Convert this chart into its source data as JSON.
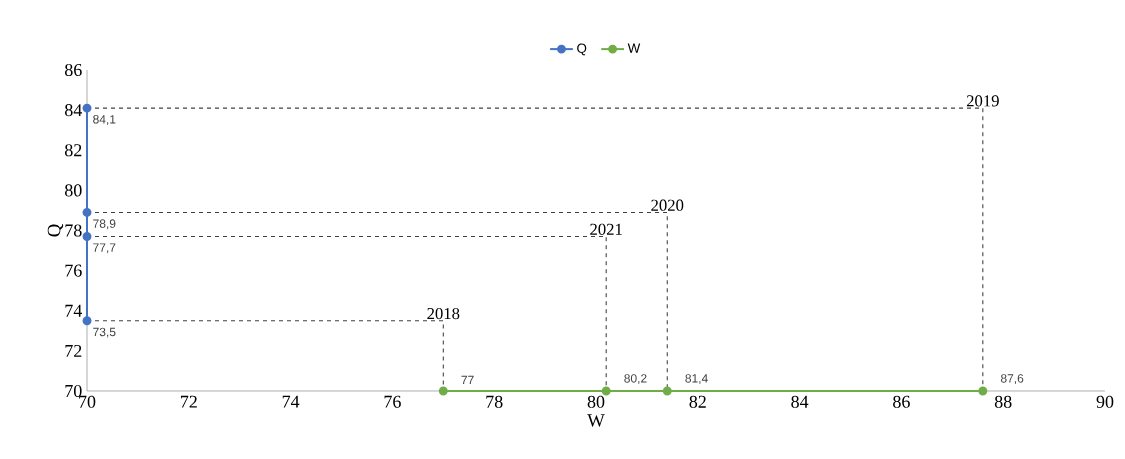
{
  "chart_data": {
    "type": "line",
    "xlabel": "W",
    "ylabel": "Q",
    "xlim": [
      70,
      90
    ],
    "ylim": [
      70,
      86
    ],
    "xticks": [
      70,
      72,
      74,
      76,
      78,
      80,
      82,
      84,
      86,
      88,
      90
    ],
    "yticks": [
      70,
      72,
      74,
      76,
      78,
      80,
      82,
      84,
      86
    ],
    "legend": "top",
    "marker": "circle",
    "grid": false,
    "series": [
      {
        "name": "Q",
        "color": "#4472c4",
        "x": [
          70,
          70,
          70,
          70
        ],
        "values": [
          73.5,
          77.7,
          78.9,
          84.1
        ],
        "value_labels": [
          "73,5",
          "77,7",
          "78,9",
          "84,1"
        ]
      },
      {
        "name": "W",
        "color": "#70ad47",
        "x": [
          77,
          80.2,
          81.4,
          87.6
        ],
        "values": [
          70,
          70,
          70,
          70
        ]
      },
      {
        "type": "line",
        "color": "#404040",
        "line_style": "dashed",
        "marker": "none",
        "x": [
          70,
          77,
          77
        ],
        "values": [
          73.5,
          73.5,
          70
        ]
      },
      {
        "type": "line",
        "color": "#404040",
        "line_style": "dashed",
        "marker": "none",
        "x": [
          70,
          80.2,
          80.2
        ],
        "values": [
          77.7,
          77.7,
          70
        ]
      },
      {
        "type": "line",
        "color": "#404040",
        "line_style": "dashed",
        "marker": "none",
        "x": [
          70,
          81.4,
          81.4
        ],
        "values": [
          78.9,
          78.9,
          70
        ]
      },
      {
        "type": "line",
        "color": "#404040",
        "line_style": "dashed",
        "marker": "none",
        "x": [
          70,
          87.6,
          87.6
        ],
        "values": [
          84.1,
          84.1,
          70
        ]
      }
    ],
    "annotations": [
      {
        "text": "2018",
        "x": 77,
        "y": 73.5
      },
      {
        "text": "2021",
        "x": 80.2,
        "y": 77.7
      },
      {
        "text": "2020",
        "x": 81.4,
        "y": 78.9
      },
      {
        "text": "2019",
        "x": 87.6,
        "y": 84.1
      },
      {
        "text": "77",
        "x": 77,
        "y": 70
      },
      {
        "text": "80,2",
        "x": 80.2,
        "y": 70
      },
      {
        "text": "81,4",
        "x": 81.4,
        "y": 70
      },
      {
        "text": "87,6",
        "x": 87.6,
        "y": 70
      }
    ]
  }
}
